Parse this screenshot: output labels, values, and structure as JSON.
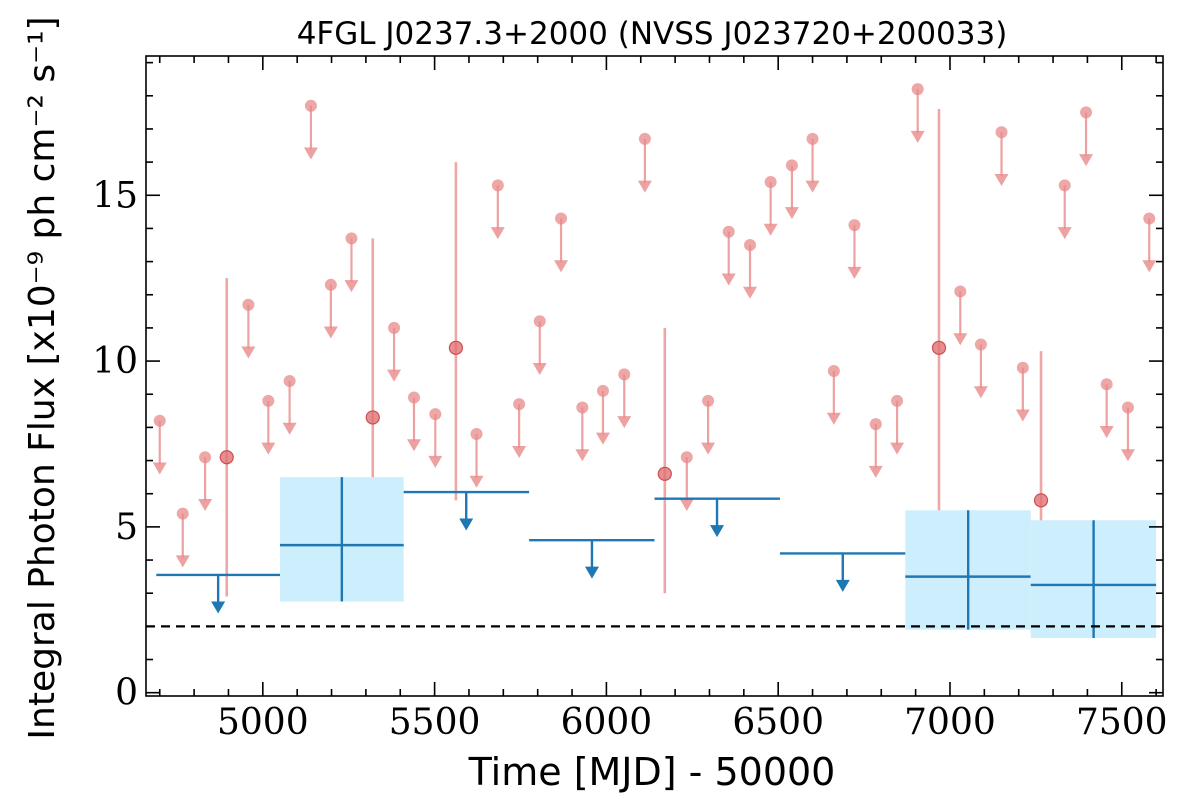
{
  "chart_data": {
    "type": "scatter",
    "title": "4FGL J0237.3+2000 (NVSS J023720+200033)",
    "xlabel": "Time [MJD] - 50000",
    "ylabel": "Integral Photon Flux [x10⁻⁹ ph cm⁻² s⁻¹]",
    "xlim": [
      4660,
      7620
    ],
    "ylim": [
      -0.1,
      19.2
    ],
    "xticks": [
      5000,
      5500,
      6000,
      6500,
      7000,
      7500
    ],
    "yticks": [
      0,
      5,
      10,
      15
    ],
    "grid": false,
    "reference_line": {
      "y": 2.0,
      "style": "dashed",
      "color": "#000000"
    },
    "series": [
      {
        "color": "#e8898a",
        "marker": "circle",
        "detections": [
          {
            "x": 4895,
            "y": 7.1,
            "ylow": 2.9,
            "yhigh": 12.5
          },
          {
            "x": 5320,
            "y": 8.3,
            "ylow": 3.7,
            "yhigh": 13.7
          },
          {
            "x": 5562,
            "y": 10.4,
            "ylow": 5.8,
            "yhigh": 16.0
          },
          {
            "x": 6170,
            "y": 6.6,
            "ylow": 3.0,
            "yhigh": 11.0
          },
          {
            "x": 6968,
            "y": 10.4,
            "ylow": 4.7,
            "yhigh": 17.6
          },
          {
            "x": 7265,
            "y": 5.8,
            "ylow": 2.4,
            "yhigh": 10.3
          }
        ],
        "upper_limits": [
          {
            "x": 4700,
            "y": 8.2
          },
          {
            "x": 4767,
            "y": 5.4
          },
          {
            "x": 4832,
            "y": 7.1
          },
          {
            "x": 4958,
            "y": 11.7
          },
          {
            "x": 5016,
            "y": 8.8
          },
          {
            "x": 5078,
            "y": 9.4
          },
          {
            "x": 5140,
            "y": 17.7
          },
          {
            "x": 5198,
            "y": 12.3
          },
          {
            "x": 5258,
            "y": 13.7
          },
          {
            "x": 5382,
            "y": 11.0
          },
          {
            "x": 5440,
            "y": 8.9
          },
          {
            "x": 5502,
            "y": 8.4
          },
          {
            "x": 5622,
            "y": 7.8
          },
          {
            "x": 5684,
            "y": 15.3
          },
          {
            "x": 5746,
            "y": 8.7
          },
          {
            "x": 5806,
            "y": 11.2
          },
          {
            "x": 5868,
            "y": 14.3
          },
          {
            "x": 5930,
            "y": 8.6
          },
          {
            "x": 5990,
            "y": 9.1
          },
          {
            "x": 6052,
            "y": 9.6
          },
          {
            "x": 6112,
            "y": 16.7
          },
          {
            "x": 6234,
            "y": 7.1
          },
          {
            "x": 6296,
            "y": 8.8
          },
          {
            "x": 6356,
            "y": 13.9
          },
          {
            "x": 6418,
            "y": 13.5
          },
          {
            "x": 6478,
            "y": 15.4
          },
          {
            "x": 6540,
            "y": 15.9
          },
          {
            "x": 6600,
            "y": 16.7
          },
          {
            "x": 6662,
            "y": 9.7
          },
          {
            "x": 6722,
            "y": 14.1
          },
          {
            "x": 6784,
            "y": 8.1
          },
          {
            "x": 6846,
            "y": 8.8
          },
          {
            "x": 6906,
            "y": 18.2
          },
          {
            "x": 7030,
            "y": 12.1
          },
          {
            "x": 7090,
            "y": 10.5
          },
          {
            "x": 7150,
            "y": 16.9
          },
          {
            "x": 7212,
            "y": 9.8
          },
          {
            "x": 7334,
            "y": 15.3
          },
          {
            "x": 7396,
            "y": 17.5
          },
          {
            "x": 7456,
            "y": 9.3
          },
          {
            "x": 7518,
            "y": 8.6
          },
          {
            "x": 7580,
            "y": 14.3
          }
        ]
      },
      {
        "color": "#1f77b4",
        "band_color": "#cdeefc",
        "marker": "none",
        "detections": [
          {
            "xmin": 5050,
            "xmax": 5410,
            "x": 5230,
            "y": 4.45,
            "ylow": 2.75,
            "yhigh": 6.5
          },
          {
            "xmin": 6870,
            "xmax": 7235,
            "x": 7053,
            "y": 3.5,
            "ylow": 1.9,
            "yhigh": 5.5
          },
          {
            "xmin": 7235,
            "xmax": 7600,
            "x": 7418,
            "y": 3.25,
            "ylow": 1.65,
            "yhigh": 5.2
          }
        ],
        "upper_limits": [
          {
            "xmin": 4690,
            "xmax": 5050,
            "x": 4870,
            "y": 3.55
          },
          {
            "xmin": 5410,
            "xmax": 5775,
            "x": 5592,
            "y": 6.05
          },
          {
            "xmin": 5775,
            "xmax": 6140,
            "x": 5958,
            "y": 4.6
          },
          {
            "xmin": 6140,
            "xmax": 6505,
            "x": 6322,
            "y": 5.85
          },
          {
            "xmin": 6505,
            "xmax": 6870,
            "x": 6688,
            "y": 4.2
          }
        ]
      }
    ]
  }
}
